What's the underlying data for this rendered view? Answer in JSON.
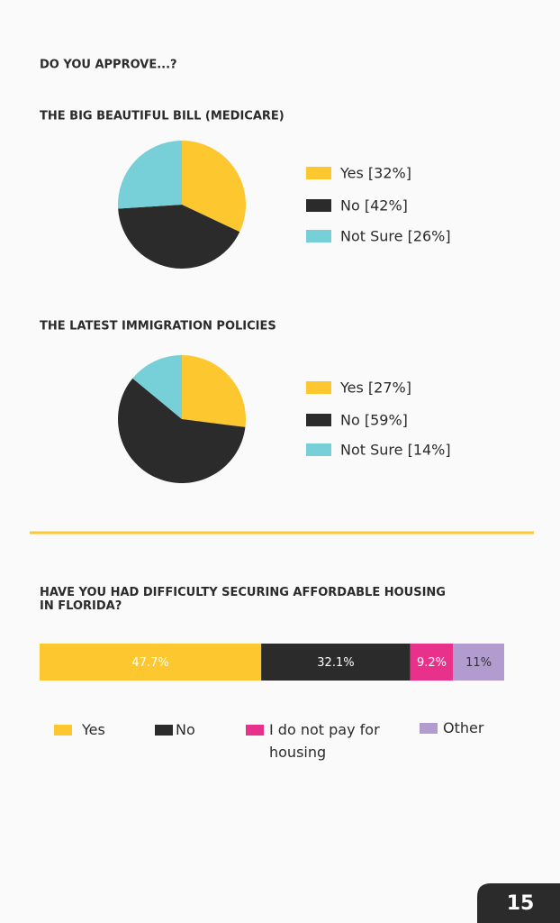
{
  "heading": "DO YOU APPROVE...?",
  "chart_data": [
    {
      "type": "pie",
      "title": "THE BIG BEAUTIFUL BILL (MEDICARE)",
      "categories": [
        "Yes [32%]",
        "No [42%]",
        "Not Sure [26%]"
      ],
      "values": [
        32,
        42,
        26
      ],
      "colors": [
        "#fdc82f",
        "#2b2b2b",
        "#77cfd8"
      ]
    },
    {
      "type": "pie",
      "title": "THE LATEST IMMIGRATION POLICIES",
      "categories": [
        "Yes [27%]",
        "No [59%]",
        "Not Sure [14%]"
      ],
      "values": [
        27,
        59,
        14
      ],
      "colors": [
        "#fdc82f",
        "#2b2b2b",
        "#77cfd8"
      ]
    },
    {
      "type": "stacked-bar",
      "title": "HAVE YOU HAD DIFFICULTY SECURING AFFORDABLE HOUSING IN FLORIDA?",
      "series": [
        {
          "name": "Yes",
          "color": "#fdc82f",
          "values": [
            47.7
          ],
          "value_labels": [
            "47.7%"
          ]
        },
        {
          "name": "No",
          "color": "#2b2b2b",
          "values": [
            32.1
          ],
          "value_labels": [
            "32.1%"
          ]
        },
        {
          "name": "I do not pay for housing",
          "color": "#e8318a",
          "values": [
            9.2
          ],
          "value_labels": [
            "9.2%"
          ]
        },
        {
          "name": "Other",
          "color": "#b29ccf",
          "values": [
            11
          ],
          "value_labels": [
            "11%"
          ]
        }
      ]
    }
  ],
  "page_number": 15
}
